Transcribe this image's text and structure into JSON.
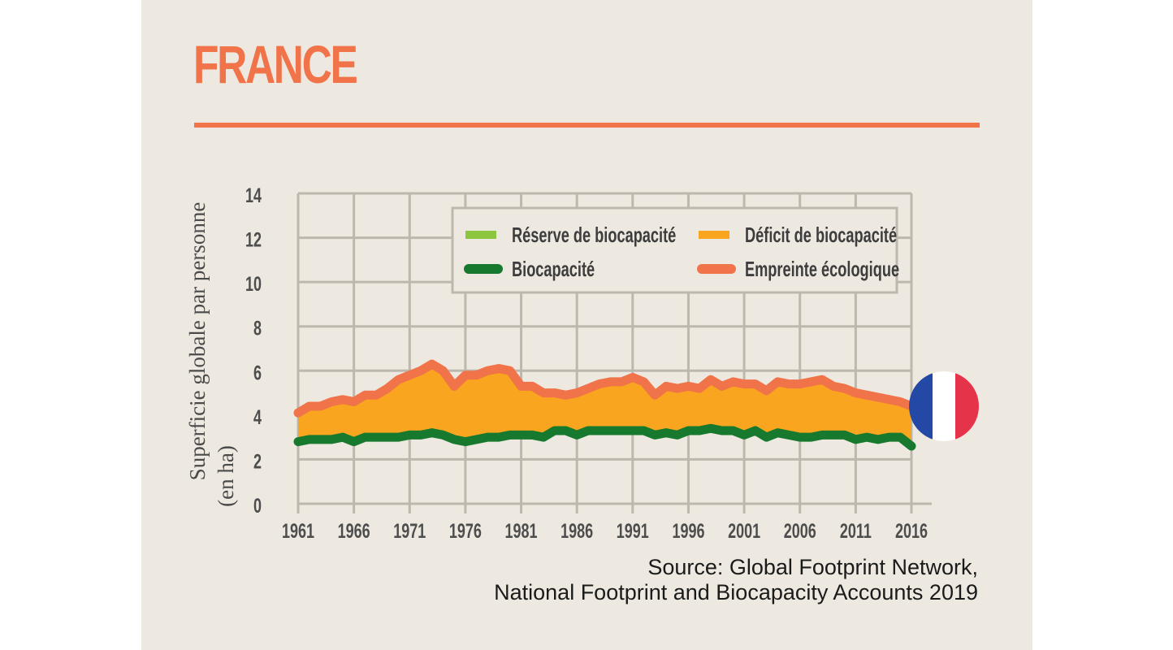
{
  "title": "FRANCE",
  "source": {
    "line1": "Source: Global Footprint Network,",
    "line2": "National Footprint and Biocapacity Accounts 2019"
  },
  "flag": {
    "colors": [
      "#2448a6",
      "#ffffff",
      "#e5344a"
    ]
  },
  "chart_data": {
    "type": "line",
    "ylabel_line1": "Superficie globale par personne",
    "ylabel_line2": "(en ha)",
    "xlim": [
      1961,
      2016
    ],
    "ylim": [
      0,
      14
    ],
    "xticks": [
      "1961",
      "1966",
      "1971",
      "1976",
      "1981",
      "1986",
      "1991",
      "1996",
      "2001",
      "2006",
      "2011",
      "2016"
    ],
    "yticks": [
      "0",
      "2",
      "4",
      "6",
      "8",
      "10",
      "12",
      "14"
    ],
    "grid": true,
    "legend_placement": "top",
    "legend": [
      {
        "label": "Réserve de biocapacité",
        "color": "#8cc63f"
      },
      {
        "label": "Déficit de biocapacité",
        "color": "#f9a51f"
      },
      {
        "label": "Biocapacité",
        "color": "#17792e"
      },
      {
        "label": "Empreinte écologique",
        "color": "#f0734a"
      }
    ],
    "x": [
      1961,
      1962,
      1963,
      1964,
      1965,
      1966,
      1967,
      1968,
      1969,
      1970,
      1971,
      1972,
      1973,
      1974,
      1975,
      1976,
      1977,
      1978,
      1979,
      1980,
      1981,
      1982,
      1983,
      1984,
      1985,
      1986,
      1987,
      1988,
      1989,
      1990,
      1991,
      1992,
      1993,
      1994,
      1995,
      1996,
      1997,
      1998,
      1999,
      2000,
      2001,
      2002,
      2003,
      2004,
      2005,
      2006,
      2007,
      2008,
      2009,
      2010,
      2011,
      2012,
      2013,
      2014,
      2015,
      2016
    ],
    "series": [
      {
        "name": "Empreinte écologique",
        "color": "#f0734a",
        "values": [
          4.1,
          4.4,
          4.4,
          4.6,
          4.7,
          4.6,
          4.9,
          4.9,
          5.2,
          5.6,
          5.8,
          6.0,
          6.3,
          6.0,
          5.3,
          5.8,
          5.8,
          6.0,
          6.1,
          6.0,
          5.3,
          5.3,
          5.0,
          5.0,
          4.9,
          5.0,
          5.2,
          5.4,
          5.5,
          5.5,
          5.7,
          5.5,
          4.9,
          5.3,
          5.2,
          5.3,
          5.2,
          5.6,
          5.3,
          5.5,
          5.4,
          5.4,
          5.1,
          5.5,
          5.4,
          5.4,
          5.5,
          5.6,
          5.3,
          5.2,
          5.0,
          4.9,
          4.8,
          4.7,
          4.6,
          4.4
        ]
      },
      {
        "name": "Biocapacité",
        "color": "#17792e",
        "values": [
          2.8,
          2.9,
          2.9,
          2.9,
          3.0,
          2.8,
          3.0,
          3.0,
          3.0,
          3.0,
          3.1,
          3.1,
          3.2,
          3.1,
          2.9,
          2.8,
          2.9,
          3.0,
          3.0,
          3.1,
          3.1,
          3.1,
          3.0,
          3.3,
          3.3,
          3.1,
          3.3,
          3.3,
          3.3,
          3.3,
          3.3,
          3.3,
          3.1,
          3.2,
          3.1,
          3.3,
          3.3,
          3.4,
          3.3,
          3.3,
          3.1,
          3.3,
          3.0,
          3.2,
          3.1,
          3.0,
          3.0,
          3.1,
          3.1,
          3.1,
          2.9,
          3.0,
          2.9,
          3.0,
          3.0,
          2.6
        ]
      }
    ]
  }
}
